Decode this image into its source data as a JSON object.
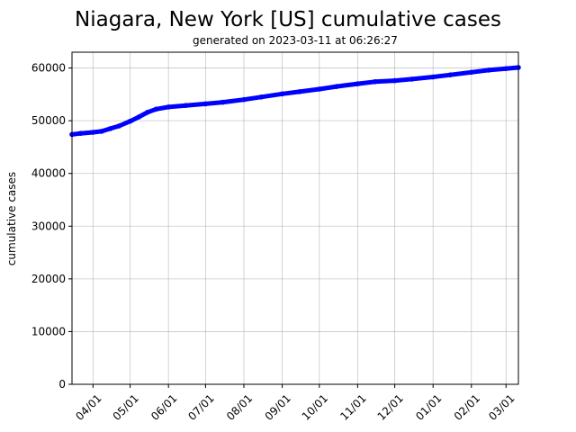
{
  "chart_data": {
    "type": "line",
    "title": "Niagara, New York [US] cumulative cases",
    "subtitle": "generated on 2023-03-11 at 06:26:27",
    "xlabel": "",
    "ylabel": "cumulative cases",
    "x_range": [
      "2022-03-15",
      "2023-03-11"
    ],
    "ylim": [
      0,
      63000
    ],
    "y_ticks": [
      0,
      10000,
      20000,
      30000,
      40000,
      50000,
      60000
    ],
    "x_ticks": [
      {
        "date": "2022-04-01",
        "label": "04/01"
      },
      {
        "date": "2022-05-01",
        "label": "05/01"
      },
      {
        "date": "2022-06-01",
        "label": "06/01"
      },
      {
        "date": "2022-07-01",
        "label": "07/01"
      },
      {
        "date": "2022-08-01",
        "label": "08/01"
      },
      {
        "date": "2022-09-01",
        "label": "09/01"
      },
      {
        "date": "2022-10-01",
        "label": "10/01"
      },
      {
        "date": "2022-11-01",
        "label": "11/01"
      },
      {
        "date": "2022-12-01",
        "label": "12/01"
      },
      {
        "date": "2023-01-01",
        "label": "01/01"
      },
      {
        "date": "2023-02-01",
        "label": "02/01"
      },
      {
        "date": "2023-03-01",
        "label": "03/01"
      }
    ],
    "grid": true,
    "series": [
      {
        "color": "#0000ff",
        "points": [
          [
            "2022-03-15",
            47400
          ],
          [
            "2022-03-22",
            47600
          ],
          [
            "2022-04-01",
            47800
          ],
          [
            "2022-04-08",
            48000
          ],
          [
            "2022-04-15",
            48500
          ],
          [
            "2022-04-22",
            49000
          ],
          [
            "2022-05-01",
            49900
          ],
          [
            "2022-05-08",
            50700
          ],
          [
            "2022-05-15",
            51600
          ],
          [
            "2022-05-22",
            52200
          ],
          [
            "2022-06-01",
            52600
          ],
          [
            "2022-06-15",
            52900
          ],
          [
            "2022-07-01",
            53200
          ],
          [
            "2022-07-15",
            53500
          ],
          [
            "2022-08-01",
            54000
          ],
          [
            "2022-08-15",
            54500
          ],
          [
            "2022-09-01",
            55100
          ],
          [
            "2022-09-15",
            55500
          ],
          [
            "2022-10-01",
            56000
          ],
          [
            "2022-10-15",
            56500
          ],
          [
            "2022-11-01",
            57000
          ],
          [
            "2022-11-15",
            57400
          ],
          [
            "2022-12-01",
            57600
          ],
          [
            "2022-12-15",
            57900
          ],
          [
            "2023-01-01",
            58300
          ],
          [
            "2023-01-15",
            58700
          ],
          [
            "2023-02-01",
            59200
          ],
          [
            "2023-02-15",
            59600
          ],
          [
            "2023-03-01",
            59900
          ],
          [
            "2023-03-11",
            60100
          ]
        ]
      }
    ]
  }
}
